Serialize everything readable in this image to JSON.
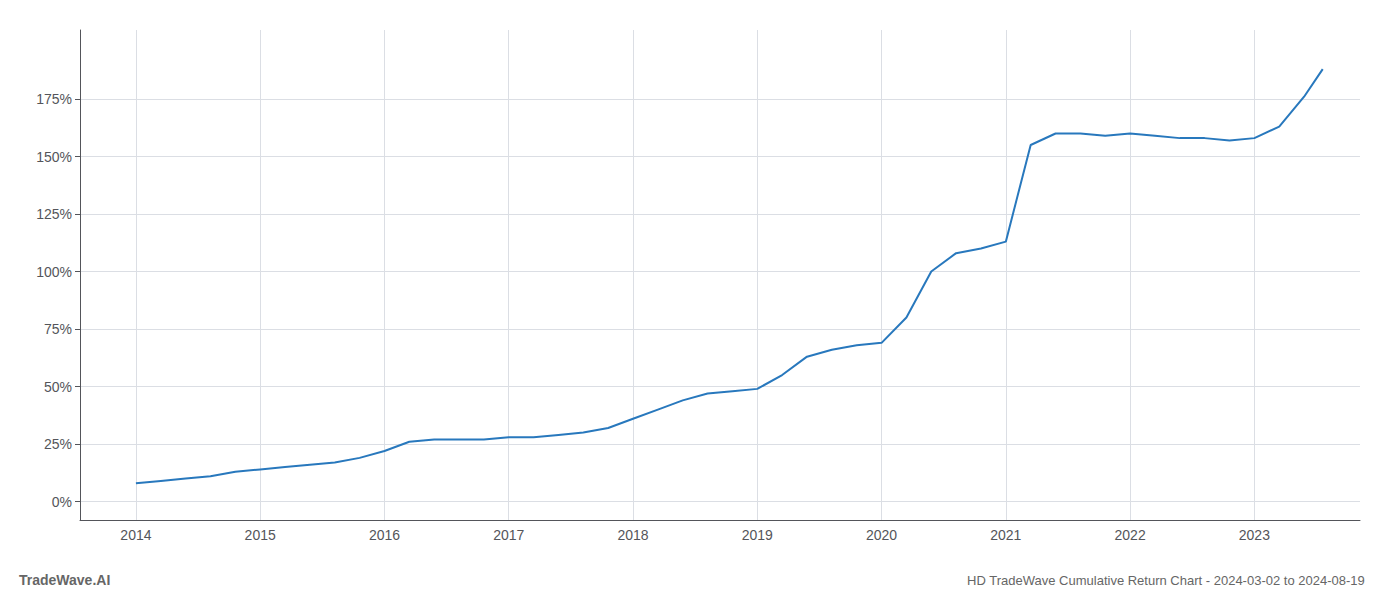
{
  "chart_data": {
    "type": "line",
    "title": "HD TradeWave Cumulative Return Chart - 2024-03-02 to 2024-08-19",
    "annotations": [
      "TradeWave.AI"
    ],
    "color": "#2878bd",
    "x": [
      2014.0,
      2014.2,
      2014.4,
      2014.6,
      2014.8,
      2015.0,
      2015.2,
      2015.4,
      2015.6,
      2015.8,
      2016.0,
      2016.2,
      2016.4,
      2016.6,
      2016.8,
      2017.0,
      2017.2,
      2017.4,
      2017.6,
      2017.8,
      2018.0,
      2018.2,
      2018.4,
      2018.6,
      2018.8,
      2019.0,
      2019.2,
      2019.4,
      2019.6,
      2019.8,
      2020.0,
      2020.2,
      2020.4,
      2020.6,
      2020.8,
      2021.0,
      2021.2,
      2021.4,
      2021.6,
      2021.8,
      2022.0,
      2022.2,
      2022.4,
      2022.6,
      2022.8,
      2023.0,
      2023.2,
      2023.4,
      2023.55
    ],
    "values": [
      8,
      9,
      10,
      11,
      13,
      14,
      15,
      16,
      17,
      19,
      22,
      26,
      27,
      27,
      27,
      28,
      28,
      29,
      30,
      32,
      36,
      40,
      44,
      47,
      48,
      49,
      55,
      63,
      66,
      68,
      69,
      80,
      100,
      108,
      110,
      113,
      155,
      160,
      160,
      159,
      160,
      159,
      158,
      158,
      157,
      158,
      163,
      176,
      188
    ],
    "xlim": [
      2013.55,
      2023.85
    ],
    "xticks": [
      2014,
      2015,
      2016,
      2017,
      2018,
      2019,
      2020,
      2021,
      2022,
      2023
    ],
    "ylim": [
      -8,
      205
    ],
    "yticks": [
      {
        "value": 0,
        "label": "0%"
      },
      {
        "value": 25,
        "label": "25%"
      },
      {
        "value": 50,
        "label": "50%"
      },
      {
        "value": 75,
        "label": "75%"
      },
      {
        "value": 100,
        "label": "100%"
      },
      {
        "value": 125,
        "label": "125%"
      },
      {
        "value": 150,
        "label": "150%"
      },
      {
        "value": 175,
        "label": "175%"
      }
    ],
    "grid": true
  }
}
